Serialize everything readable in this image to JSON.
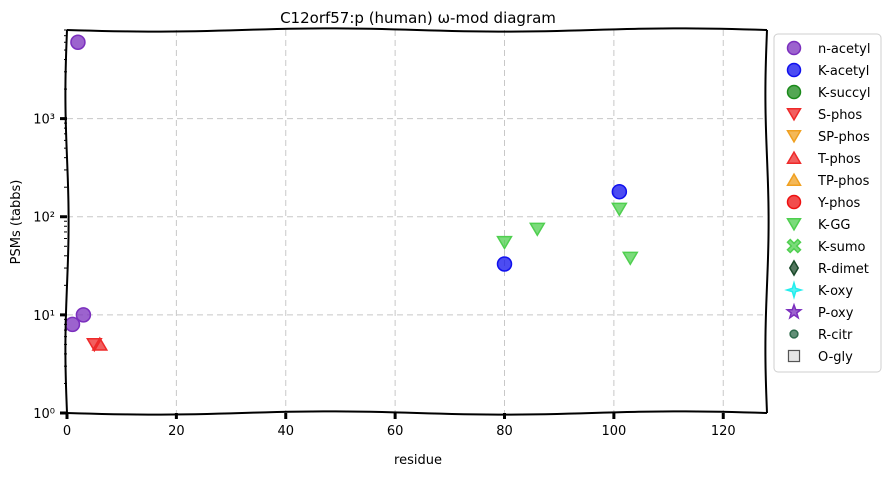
{
  "chart_data": {
    "type": "scatter",
    "title": "C12orf57:p (human) ω-mod diagram",
    "xlabel": "residue",
    "ylabel": "PSMs (tabbs)",
    "xlim": [
      0,
      128
    ],
    "ylim": [
      1,
      8000
    ],
    "yscale": "log",
    "grid": true,
    "legend_position": "right-outside",
    "x_ticks": [
      0,
      20,
      40,
      60,
      80,
      100,
      120
    ],
    "x_tick_labels": [
      "0",
      "20",
      "40",
      "60",
      "80",
      "100",
      "120"
    ],
    "y_ticks": [
      1,
      10,
      100,
      1000
    ],
    "y_tick_labels": [
      "10⁰",
      "10¹",
      "10²",
      "10³"
    ],
    "series": [
      {
        "name": "n-acetyl",
        "marker": "circle",
        "color": "#7b2fbe",
        "points": [
          [
            2,
            6000
          ],
          [
            1,
            8
          ],
          [
            3,
            10
          ]
        ]
      },
      {
        "name": "K-acetyl",
        "marker": "circle",
        "color": "#1010ee",
        "points": [
          [
            80,
            33
          ],
          [
            101,
            180
          ]
        ]
      },
      {
        "name": "K-succyl",
        "marker": "circle",
        "color": "#1a8a1a",
        "points": []
      },
      {
        "name": "S-phos",
        "marker": "triangle-down",
        "color": "#ee2a2a",
        "points": [
          [
            5,
            5
          ]
        ]
      },
      {
        "name": "SP-phos",
        "marker": "triangle-down",
        "color": "#f0a020",
        "points": []
      },
      {
        "name": "T-phos",
        "marker": "triangle-up",
        "color": "#ee2a2a",
        "points": [
          [
            6,
            5
          ]
        ]
      },
      {
        "name": "TP-phos",
        "marker": "triangle-up",
        "color": "#f0a020",
        "points": []
      },
      {
        "name": "Y-phos",
        "marker": "circle",
        "color": "#ee1010",
        "points": []
      },
      {
        "name": "K-GG",
        "marker": "triangle-down",
        "color": "#4fcf4f",
        "points": [
          [
            80,
            55
          ],
          [
            86,
            75
          ],
          [
            101,
            120
          ],
          [
            103,
            38
          ]
        ]
      },
      {
        "name": "K-sumo",
        "marker": "x",
        "color": "#4fcf4f",
        "points": []
      },
      {
        "name": "R-dimet",
        "marker": "diamond",
        "color": "#1a4a2a",
        "points": []
      },
      {
        "name": "K-oxy",
        "marker": "star4",
        "color": "#22eeee",
        "points": []
      },
      {
        "name": "P-oxy",
        "marker": "star",
        "color": "#7b2fbe",
        "points": []
      },
      {
        "name": "R-citr",
        "marker": "small-circle",
        "color": "#2d6a4a",
        "points": []
      },
      {
        "name": "O-gly",
        "marker": "square",
        "color": "#dddddd",
        "points": []
      }
    ]
  }
}
